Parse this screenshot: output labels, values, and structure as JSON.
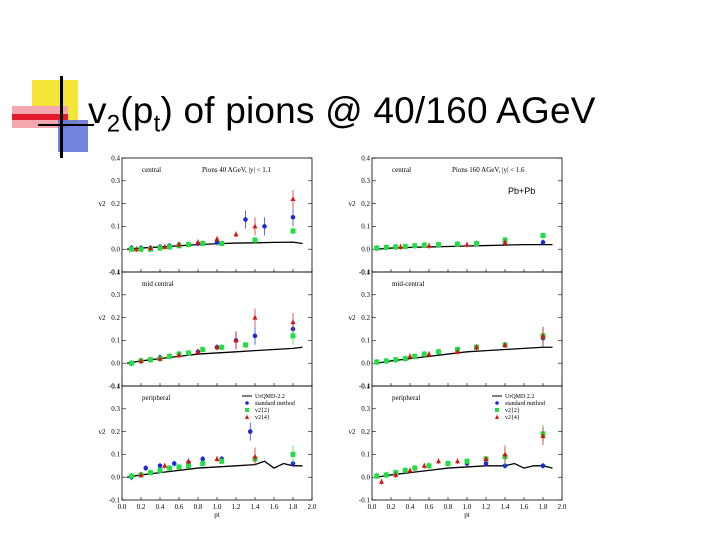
{
  "title": {
    "main": "v",
    "sub1": "2",
    "mid": "(p",
    "sub2": "t",
    "rest": ") of pions @ 40/160 AGeV"
  },
  "figure": {
    "annotation": "Pb+Pb",
    "left_header": "Pions 40 AGeV, |y| < 1.1",
    "right_header": "Pions 160 AGeV, |y| < 1.6",
    "panel_labels_left": [
      "central",
      "mid central",
      "peripheral"
    ],
    "panel_labels_right": [
      "central",
      "mid-central",
      "peripheral"
    ],
    "ylabel": "v2",
    "xlabel": "pt",
    "legend_left": [
      "UrQMD-2.2",
      "standard method",
      "v2{2}",
      "v2{4}"
    ],
    "legend_right": [
      "UrQMD 2.2",
      "standard method",
      "v2{2}",
      "v2{4}"
    ]
  },
  "colors": {
    "blue": "#1a2ad8",
    "green": "#22dd44",
    "red": "#dd1111",
    "black": "#000000"
  },
  "chart_data": [
    {
      "type": "scatter",
      "panel": "40 AGeV central",
      "xlim": [
        0,
        2
      ],
      "ylim": [
        -0.1,
        0.4
      ],
      "yticks": [
        "0.4",
        "0.3",
        "0.2",
        "0.1",
        "0.0",
        "-0.1"
      ],
      "model": {
        "x": [
          0.05,
          0.2,
          0.4,
          0.6,
          0.8,
          1.0,
          1.2,
          1.4,
          1.6,
          1.8,
          1.9
        ],
        "y": [
          0.0,
          0.005,
          0.01,
          0.015,
          0.02,
          0.024,
          0.027,
          0.028,
          0.03,
          0.031,
          0.025
        ]
      },
      "series": [
        {
          "name": "standard method",
          "color": "blue",
          "x": [
            0.1,
            0.2,
            0.3,
            0.4,
            0.5,
            0.6,
            0.8,
            1.0,
            1.3,
            1.5,
            1.8
          ],
          "y": [
            0.005,
            0.005,
            0.005,
            0.01,
            0.015,
            0.02,
            0.025,
            0.03,
            0.13,
            0.1,
            0.14
          ]
        },
        {
          "name": "v2{2}",
          "color": "green",
          "x": [
            0.1,
            0.2,
            0.3,
            0.4,
            0.5,
            0.6,
            0.7,
            0.85,
            1.05,
            1.4,
            1.8
          ],
          "y": [
            0.0,
            0.0,
            0.0,
            0.005,
            0.01,
            0.015,
            0.02,
            0.025,
            0.025,
            0.04,
            0.08
          ]
        },
        {
          "name": "v2{4}",
          "color": "red",
          "x": [
            0.15,
            0.3,
            0.45,
            0.6,
            0.8,
            1.0,
            1.2,
            1.4,
            1.8
          ],
          "y": [
            0.0,
            0.005,
            0.01,
            0.02,
            0.03,
            0.045,
            0.065,
            0.1,
            0.22
          ]
        }
      ]
    },
    {
      "type": "scatter",
      "panel": "40 AGeV mid central",
      "xlim": [
        0,
        2
      ],
      "ylim": [
        -0.1,
        0.4
      ],
      "yticks": [
        "0.4",
        "0.3",
        "0.2",
        "0.1",
        "0.0",
        "-0.1"
      ],
      "model": {
        "x": [
          0.05,
          0.2,
          0.4,
          0.6,
          0.8,
          1.0,
          1.2,
          1.4,
          1.6,
          1.8,
          1.9
        ],
        "y": [
          0.0,
          0.01,
          0.02,
          0.03,
          0.04,
          0.045,
          0.05,
          0.055,
          0.06,
          0.065,
          0.07
        ]
      },
      "series": [
        {
          "name": "standard method",
          "color": "blue",
          "x": [
            0.1,
            0.2,
            0.3,
            0.4,
            0.5,
            0.6,
            0.8,
            1.0,
            1.2,
            1.4,
            1.8
          ],
          "y": [
            0.0,
            0.01,
            0.015,
            0.025,
            0.03,
            0.04,
            0.05,
            0.07,
            0.1,
            0.12,
            0.15
          ]
        },
        {
          "name": "v2{2}",
          "color": "green",
          "x": [
            0.1,
            0.2,
            0.3,
            0.4,
            0.5,
            0.6,
            0.7,
            0.85,
            1.05,
            1.3,
            1.8
          ],
          "y": [
            0.0,
            0.01,
            0.015,
            0.02,
            0.03,
            0.04,
            0.045,
            0.06,
            0.07,
            0.08,
            0.12
          ]
        },
        {
          "name": "v2{4}",
          "color": "red",
          "x": [
            0.2,
            0.4,
            0.6,
            0.8,
            1.0,
            1.2,
            1.4,
            1.8
          ],
          "y": [
            0.01,
            0.02,
            0.035,
            0.05,
            0.07,
            0.1,
            0.2,
            0.18
          ]
        }
      ]
    },
    {
      "type": "scatter",
      "panel": "40 AGeV peripheral",
      "xlim": [
        0,
        2
      ],
      "ylim": [
        -0.1,
        0.4
      ],
      "yticks": [
        "0.4",
        "0.3",
        "0.2",
        "0.1",
        "0.0",
        "-0.1"
      ],
      "model": {
        "x": [
          0.05,
          0.2,
          0.4,
          0.6,
          0.8,
          1.0,
          1.2,
          1.4,
          1.5,
          1.6,
          1.7,
          1.8,
          1.9
        ],
        "y": [
          0.0,
          0.01,
          0.02,
          0.03,
          0.04,
          0.045,
          0.05,
          0.055,
          0.07,
          0.04,
          0.06,
          0.05,
          0.05
        ]
      },
      "series": [
        {
          "name": "standard method",
          "color": "blue",
          "x": [
            0.1,
            0.25,
            0.4,
            0.55,
            0.7,
            0.85,
            1.05,
            1.35,
            1.8
          ],
          "y": [
            0.0,
            0.04,
            0.05,
            0.06,
            0.065,
            0.08,
            0.08,
            0.2,
            0.06
          ]
        },
        {
          "name": "v2{2}",
          "color": "green",
          "x": [
            0.1,
            0.2,
            0.3,
            0.4,
            0.5,
            0.6,
            0.7,
            0.85,
            1.05,
            1.4,
            1.8
          ],
          "y": [
            0.005,
            0.01,
            0.02,
            0.03,
            0.04,
            0.045,
            0.05,
            0.06,
            0.07,
            0.08,
            0.1
          ]
        },
        {
          "name": "v2{4}",
          "color": "red",
          "x": [
            0.2,
            0.45,
            0.7,
            1.0,
            1.4
          ],
          "y": [
            0.01,
            0.05,
            0.07,
            0.08,
            0.09
          ]
        }
      ],
      "xticks": [
        "0.0",
        "0.2",
        "0.4",
        "0.6",
        "0.8",
        "1.0",
        "1.2",
        "1.4",
        "1.6",
        "1.8",
        "2.0"
      ]
    },
    {
      "type": "scatter",
      "panel": "160 AGeV central",
      "xlim": [
        0,
        2
      ],
      "ylim": [
        -0.1,
        0.4
      ],
      "yticks": [
        "0.4",
        "0.3",
        "0.2",
        "0.1",
        "0.0",
        "-0.1"
      ],
      "model": {
        "x": [
          0.05,
          0.2,
          0.4,
          0.6,
          0.8,
          1.0,
          1.2,
          1.4,
          1.6,
          1.8,
          1.9
        ],
        "y": [
          0.0,
          0.005,
          0.008,
          0.01,
          0.012,
          0.014,
          0.016,
          0.018,
          0.02,
          0.02,
          0.02
        ]
      },
      "series": [
        {
          "name": "standard method",
          "color": "blue",
          "x": [
            0.05,
            0.15,
            0.25,
            0.35,
            0.45,
            0.55,
            0.7,
            0.9,
            1.1,
            1.4,
            1.8
          ],
          "y": [
            0.005,
            0.008,
            0.01,
            0.012,
            0.015,
            0.018,
            0.02,
            0.022,
            0.025,
            0.04,
            0.03
          ]
        },
        {
          "name": "v2{2}",
          "color": "green",
          "x": [
            0.05,
            0.15,
            0.25,
            0.35,
            0.45,
            0.55,
            0.7,
            0.9,
            1.1,
            1.4,
            1.8
          ],
          "y": [
            0.005,
            0.008,
            0.01,
            0.012,
            0.015,
            0.018,
            0.02,
            0.022,
            0.025,
            0.04,
            0.06
          ]
        },
        {
          "name": "v2{4}",
          "color": "red",
          "x": [
            0.3,
            0.6,
            1.0,
            1.4
          ],
          "y": [
            0.01,
            0.015,
            0.02,
            0.03
          ]
        }
      ]
    },
    {
      "type": "scatter",
      "panel": "160 AGeV mid-central",
      "xlim": [
        0,
        2
      ],
      "ylim": [
        -0.1,
        0.4
      ],
      "yticks": [
        "0.4",
        "0.3",
        "0.2",
        "0.1",
        "0.0",
        "-0.1"
      ],
      "model": {
        "x": [
          0.05,
          0.2,
          0.4,
          0.6,
          0.8,
          1.0,
          1.2,
          1.4,
          1.6,
          1.8,
          1.9
        ],
        "y": [
          0.0,
          0.01,
          0.02,
          0.03,
          0.04,
          0.05,
          0.055,
          0.06,
          0.065,
          0.07,
          0.07
        ]
      },
      "series": [
        {
          "name": "standard method",
          "color": "blue",
          "x": [
            0.05,
            0.15,
            0.25,
            0.35,
            0.45,
            0.55,
            0.7,
            0.9,
            1.1,
            1.4,
            1.8
          ],
          "y": [
            0.005,
            0.01,
            0.015,
            0.02,
            0.03,
            0.04,
            0.05,
            0.06,
            0.07,
            0.08,
            0.11
          ]
        },
        {
          "name": "v2{2}",
          "color": "green",
          "x": [
            0.05,
            0.15,
            0.25,
            0.35,
            0.45,
            0.55,
            0.7,
            0.9,
            1.1,
            1.4,
            1.8
          ],
          "y": [
            0.005,
            0.01,
            0.015,
            0.02,
            0.03,
            0.04,
            0.05,
            0.06,
            0.07,
            0.08,
            0.12
          ]
        },
        {
          "name": "v2{4}",
          "color": "red",
          "x": [
            0.4,
            0.6,
            0.9,
            1.1,
            1.4,
            1.8
          ],
          "y": [
            0.03,
            0.04,
            0.05,
            0.07,
            0.08,
            0.12
          ]
        }
      ]
    },
    {
      "type": "scatter",
      "panel": "160 AGeV peripheral",
      "xlim": [
        0,
        2
      ],
      "ylim": [
        -0.1,
        0.4
      ],
      "yticks": [
        "0.4",
        "0.3",
        "0.2",
        "0.1",
        "0.0",
        "-0.1"
      ],
      "model": {
        "x": [
          0.05,
          0.2,
          0.4,
          0.6,
          0.8,
          1.0,
          1.2,
          1.4,
          1.5,
          1.6,
          1.7,
          1.8,
          1.9
        ],
        "y": [
          0.0,
          0.01,
          0.02,
          0.03,
          0.04,
          0.045,
          0.05,
          0.05,
          0.06,
          0.04,
          0.05,
          0.05,
          0.04
        ]
      },
      "series": [
        {
          "name": "standard method",
          "color": "blue",
          "x": [
            0.05,
            0.15,
            0.25,
            0.35,
            0.45,
            0.6,
            0.8,
            1.0,
            1.2,
            1.4,
            1.8
          ],
          "y": [
            0.005,
            0.01,
            0.02,
            0.03,
            0.04,
            0.05,
            0.06,
            0.06,
            0.06,
            0.05,
            0.05
          ]
        },
        {
          "name": "v2{2}",
          "color": "green",
          "x": [
            0.05,
            0.15,
            0.25,
            0.35,
            0.45,
            0.6,
            0.8,
            1.0,
            1.2,
            1.4,
            1.8
          ],
          "y": [
            0.005,
            0.01,
            0.02,
            0.03,
            0.04,
            0.05,
            0.06,
            0.07,
            0.08,
            0.09,
            0.19
          ]
        },
        {
          "name": "v2{4}",
          "color": "red",
          "x": [
            0.1,
            0.25,
            0.4,
            0.55,
            0.7,
            0.9,
            1.2,
            1.4,
            1.8
          ],
          "y": [
            -0.02,
            0.01,
            0.03,
            0.05,
            0.07,
            0.07,
            0.08,
            0.1,
            0.18
          ]
        }
      ],
      "xticks": [
        "0.0",
        "0.2",
        "0.4",
        "0.6",
        "0.8",
        "1.0",
        "1.2",
        "1.4",
        "1.6",
        "1.8",
        "2.0"
      ]
    }
  ]
}
